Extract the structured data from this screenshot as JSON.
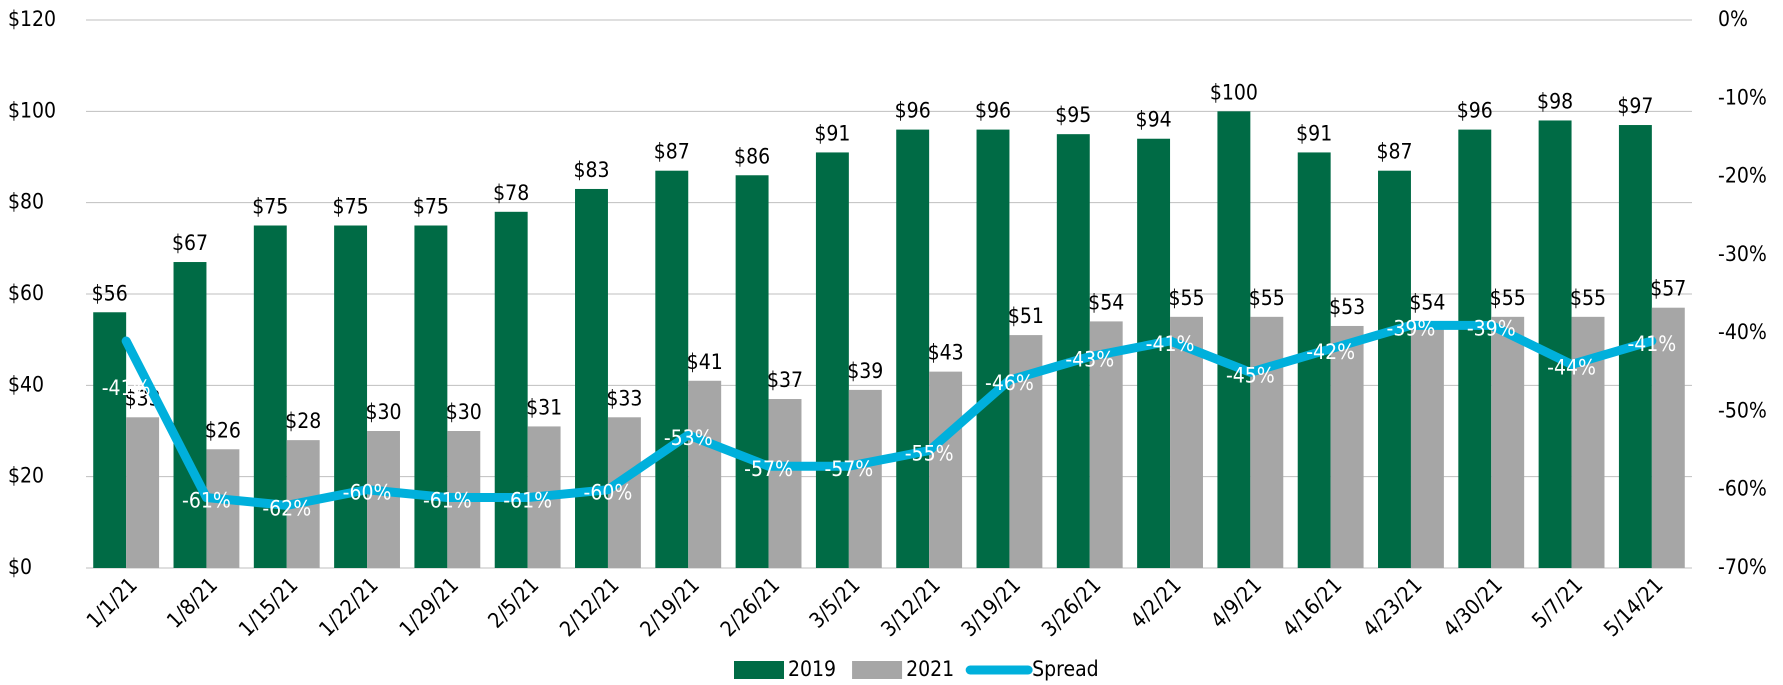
{
  "chart_data": {
    "type": "bar",
    "categories": [
      "1/1/21",
      "1/8/21",
      "1/15/21",
      "1/22/21",
      "1/29/21",
      "2/5/21",
      "2/12/21",
      "2/19/21",
      "2/26/21",
      "3/5/21",
      "3/12/21",
      "3/19/21",
      "3/26/21",
      "4/2/21",
      "4/9/21",
      "4/16/21",
      "4/23/21",
      "4/30/21",
      "5/7/21",
      "5/14/21"
    ],
    "series": [
      {
        "name": "2019",
        "color": "#006b45",
        "type": "bar",
        "values": [
          56,
          67,
          75,
          75,
          75,
          78,
          83,
          87,
          86,
          91,
          96,
          96,
          95,
          94,
          100,
          91,
          87,
          96,
          98,
          97
        ],
        "value_labels": [
          "$56",
          "$67",
          "$75",
          "$75",
          "$75",
          "$78",
          "$83",
          "$87",
          "$86",
          "$91",
          "$96",
          "$96",
          "$95",
          "$94",
          "$100",
          "$91",
          "$87",
          "$96",
          "$98",
          "$97"
        ]
      },
      {
        "name": "2021",
        "color": "#a6a6a6",
        "type": "bar",
        "values": [
          33,
          26,
          28,
          30,
          30,
          31,
          33,
          41,
          37,
          39,
          43,
          51,
          54,
          55,
          55,
          53,
          54,
          55,
          55,
          57
        ],
        "value_labels": [
          "$33",
          "$26",
          "$28",
          "$30",
          "$30",
          "$31",
          "$33",
          "$41",
          "$37",
          "$39",
          "$43",
          "$51",
          "$54",
          "$55",
          "$55",
          "$53",
          "$54",
          "$55",
          "$55",
          "$57"
        ]
      },
      {
        "name": "Spread",
        "color": "#00b0dc",
        "type": "line",
        "axis": "y2",
        "values": [
          -41,
          -61,
          -62,
          -60,
          -61,
          -61,
          -60,
          -53,
          -57,
          -57,
          -55,
          -46,
          -43,
          -41,
          -45,
          -42,
          -39,
          -39,
          -44,
          -41
        ],
        "value_labels": [
          "-41%",
          "-61%",
          "-62%",
          "-60%",
          "-61%",
          "-61%",
          "-60%",
          "-53%",
          "-57%",
          "-57%",
          "-55%",
          "-46%",
          "-43%",
          "-41%",
          "-45%",
          "-42%",
          "-39%",
          "-39%",
          "-44%",
          "-41%"
        ]
      }
    ],
    "ylim": [
      0,
      120
    ],
    "yticks": [
      {
        "value": 0,
        "label": "$0"
      },
      {
        "value": 20,
        "label": "$20"
      },
      {
        "value": 40,
        "label": "$40"
      },
      {
        "value": 60,
        "label": "$60"
      },
      {
        "value": 80,
        "label": "$80"
      },
      {
        "value": 100,
        "label": "$100"
      },
      {
        "value": 120,
        "label": "$120"
      }
    ],
    "y2lim": [
      -70,
      0
    ],
    "y2ticks": [
      {
        "value": 0,
        "label": "0%"
      },
      {
        "value": -10,
        "label": "-10%"
      },
      {
        "value": -20,
        "label": "-20%"
      },
      {
        "value": -30,
        "label": "-30%"
      },
      {
        "value": -40,
        "label": "-40%"
      },
      {
        "value": -50,
        "label": "-50%"
      },
      {
        "value": -60,
        "label": "-60%"
      },
      {
        "value": -70,
        "label": "-70%"
      }
    ],
    "grid": true,
    "legend": "bottom"
  }
}
